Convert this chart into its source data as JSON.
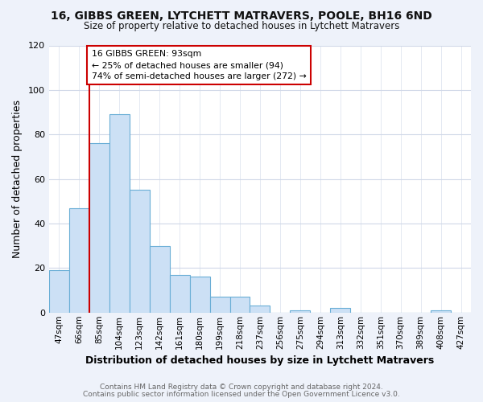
{
  "title_line1": "16, GIBBS GREEN, LYTCHETT MATRAVERS, POOLE, BH16 6ND",
  "title_line2": "Size of property relative to detached houses in Lytchett Matravers",
  "xlabel": "Distribution of detached houses by size in Lytchett Matravers",
  "ylabel": "Number of detached properties",
  "categories": [
    "47sqm",
    "66sqm",
    "85sqm",
    "104sqm",
    "123sqm",
    "142sqm",
    "161sqm",
    "180sqm",
    "199sqm",
    "218sqm",
    "237sqm",
    "256sqm",
    "275sqm",
    "294sqm",
    "313sqm",
    "332sqm",
    "351sqm",
    "370sqm",
    "389sqm",
    "408sqm",
    "427sqm"
  ],
  "values": [
    19,
    47,
    76,
    89,
    55,
    30,
    17,
    16,
    7,
    7,
    3,
    0,
    1,
    0,
    2,
    0,
    0,
    0,
    0,
    1,
    0
  ],
  "bar_color": "#cce0f5",
  "bar_edge_color": "#6aaed6",
  "marker_label_line1": "16 GIBBS GREEN: 93sqm",
  "marker_label_line2": "← 25% of detached houses are smaller (94)",
  "marker_label_line3": "74% of semi-detached houses are larger (272) →",
  "marker_color": "#cc0000",
  "ylim": [
    0,
    120
  ],
  "yticks": [
    0,
    20,
    40,
    60,
    80,
    100,
    120
  ],
  "footer_line1": "Contains HM Land Registry data © Crown copyright and database right 2024.",
  "footer_line2": "Contains public sector information licensed under the Open Government Licence v3.0.",
  "bg_color": "#eef2fa",
  "plot_bg_color": "#ffffff",
  "grid_color": "#d0d8e8"
}
